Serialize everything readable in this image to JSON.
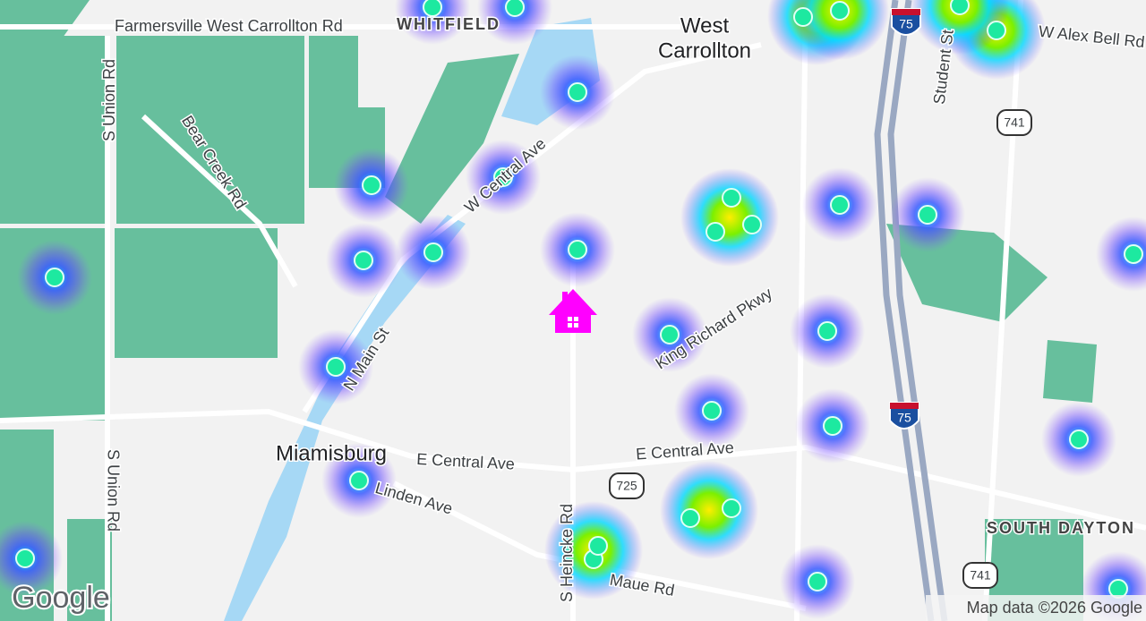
{
  "labels": {
    "farmersville": "Farmersville West Carrollton Rd",
    "whitfield": "WHITFIELD",
    "west_carrollton": [
      "West",
      "Carrollton"
    ],
    "alex_bell": "W Alex Bell Rd",
    "student_st": "Student St",
    "union_north": "S Union Rd",
    "bear_creek": "Bear Creek Rd",
    "w_central": "W Central Ave",
    "n_main": "N Main St",
    "king_richard": "King Richard Pkwy",
    "union_south": "S Union Rd",
    "miamisburg": "Miamisburg",
    "e_central_west": "E Central Ave",
    "e_central_east": "E Central Ave",
    "linden": "Linden Ave",
    "heincke": "S Heincke Rd",
    "maue": "Maue Rd",
    "south_dayton": "SOUTH DAYTON"
  },
  "shields": {
    "i75_north": "75",
    "i75_south": "75",
    "r741_north": "741",
    "r741_south": "741",
    "r725": "725"
  },
  "footer": {
    "logo": "Google",
    "attribution": "Map data ©2026 Google"
  }
}
